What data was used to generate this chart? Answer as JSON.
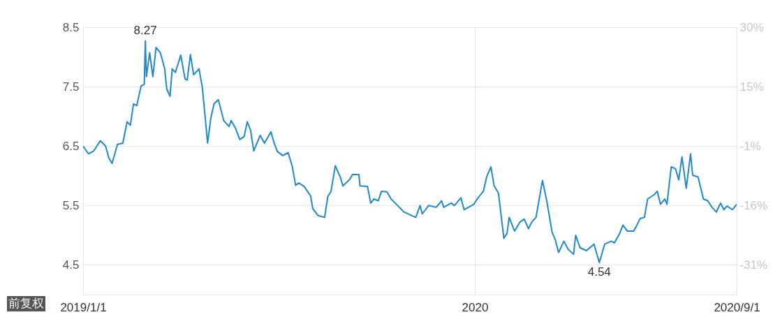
{
  "chart_data": {
    "type": "line",
    "x": [
      "2019-01-01",
      "2019-01-06",
      "2019-01-11",
      "2019-01-17",
      "2019-01-22",
      "2019-01-25",
      "2019-01-28",
      "2019-02-02",
      "2019-02-07",
      "2019-02-11",
      "2019-02-14",
      "2019-02-17",
      "2019-02-20",
      "2019-02-24",
      "2019-02-27",
      "2019-02-28",
      "2019-03-01",
      "2019-03-04",
      "2019-03-07",
      "2019-03-10",
      "2019-03-14",
      "2019-03-18",
      "2019-03-20",
      "2019-03-23",
      "2019-03-25",
      "2019-03-28",
      "2019-04-02",
      "2019-04-06",
      "2019-04-08",
      "2019-04-11",
      "2019-04-14",
      "2019-04-19",
      "2019-04-22",
      "2019-04-24",
      "2019-04-27",
      "2019-04-30",
      "2019-05-03",
      "2019-05-07",
      "2019-05-12",
      "2019-05-17",
      "2019-05-19",
      "2019-05-23",
      "2019-05-27",
      "2019-05-31",
      "2019-06-03",
      "2019-06-06",
      "2019-06-09",
      "2019-06-15",
      "2019-06-19",
      "2019-06-25",
      "2019-06-28",
      "2019-07-01",
      "2019-07-06",
      "2019-07-11",
      "2019-07-15",
      "2019-07-18",
      "2019-07-21",
      "2019-07-26",
      "2019-08-01",
      "2019-08-03",
      "2019-08-08",
      "2019-08-14",
      "2019-08-17",
      "2019-08-20",
      "2019-08-24",
      "2019-08-29",
      "2019-08-31",
      "2019-09-06",
      "2019-09-09",
      "2019-09-15",
      "2019-09-16",
      "2019-09-23",
      "2019-09-26",
      "2019-09-29",
      "2019-10-03",
      "2019-10-06",
      "2019-10-11",
      "2019-10-15",
      "2019-10-21",
      "2019-10-27",
      "2019-11-02",
      "2019-11-07",
      "2019-11-11",
      "2019-11-13",
      "2019-11-19",
      "2019-11-26",
      "2019-12-01",
      "2019-12-03",
      "2019-12-10",
      "2019-12-13",
      "2019-12-19",
      "2019-12-22",
      "2019-12-31",
      "2020-01-04",
      "2020-01-09",
      "2020-01-12",
      "2020-01-16",
      "2020-01-19",
      "2020-01-23",
      "2020-01-27",
      "2020-01-28",
      "2020-01-31",
      "2020-02-02",
      "2020-02-07",
      "2020-02-12",
      "2020-02-16",
      "2020-02-20",
      "2020-02-23",
      "2020-02-27",
      "2020-03-04",
      "2020-03-08",
      "2020-03-13",
      "2020-03-16",
      "2020-03-19",
      "2020-03-24",
      "2020-03-28",
      "2020-04-02",
      "2020-04-04",
      "2020-04-08",
      "2020-04-14",
      "2020-04-21",
      "2020-04-26",
      "2020-05-01",
      "2020-05-07",
      "2020-05-10",
      "2020-05-15",
      "2020-05-18",
      "2020-05-22",
      "2020-05-28",
      "2020-05-31",
      "2020-06-03",
      "2020-06-07",
      "2020-06-10",
      "2020-06-16",
      "2020-06-19",
      "2020-06-22",
      "2020-06-26",
      "2020-06-28",
      "2020-07-02",
      "2020-07-06",
      "2020-07-09",
      "2020-07-12",
      "2020-07-16",
      "2020-07-20",
      "2020-07-22",
      "2020-07-27",
      "2020-08-01",
      "2020-08-05",
      "2020-08-09",
      "2020-08-13",
      "2020-08-17",
      "2020-08-20",
      "2020-08-23",
      "2020-08-28",
      "2020-09-01"
    ],
    "series": [
      {
        "color": "#1f88cf",
        "values": [
          6.5,
          6.37,
          6.42,
          6.59,
          6.5,
          6.3,
          6.21,
          6.53,
          6.55,
          6.91,
          6.85,
          7.21,
          7.18,
          7.51,
          7.54,
          8.27,
          7.67,
          8.07,
          7.67,
          8.16,
          8.07,
          7.8,
          7.46,
          7.34,
          7.8,
          7.74,
          8.03,
          7.63,
          7.61,
          8.04,
          7.7,
          7.8,
          7.5,
          7.13,
          6.55,
          6.97,
          7.21,
          7.28,
          6.93,
          6.83,
          6.93,
          6.8,
          6.61,
          6.66,
          6.91,
          6.77,
          6.42,
          6.68,
          6.55,
          6.74,
          6.55,
          6.41,
          6.34,
          6.39,
          6.15,
          5.84,
          5.88,
          5.82,
          5.66,
          5.45,
          5.33,
          5.3,
          5.65,
          5.74,
          6.17,
          5.96,
          5.83,
          5.93,
          6.02,
          6.02,
          5.83,
          5.82,
          5.54,
          5.61,
          5.58,
          5.74,
          5.73,
          5.61,
          5.5,
          5.39,
          5.34,
          5.3,
          5.5,
          5.36,
          5.5,
          5.47,
          5.58,
          5.47,
          5.54,
          5.5,
          5.63,
          5.43,
          5.52,
          5.63,
          5.74,
          5.98,
          6.15,
          5.83,
          5.71,
          5.11,
          4.95,
          5.03,
          5.3,
          5.07,
          5.22,
          5.27,
          5.11,
          5.22,
          5.3,
          5.92,
          5.58,
          5.05,
          4.92,
          4.71,
          4.9,
          4.76,
          4.68,
          5.0,
          4.79,
          4.74,
          4.85,
          4.54,
          4.85,
          4.9,
          4.87,
          5.03,
          5.17,
          5.07,
          5.07,
          5.17,
          5.28,
          5.3,
          5.61,
          5.68,
          5.74,
          5.52,
          5.61,
          5.52,
          6.15,
          6.12,
          5.93,
          6.32,
          5.79,
          6.37,
          6.01,
          5.98,
          5.61,
          5.58,
          5.47,
          5.39,
          5.54,
          5.43,
          5.49,
          5.43,
          5.52
        ]
      }
    ],
    "xlim": [
      "2019-01-01",
      "2020-09-01"
    ],
    "xticks": [
      {
        "value": "2019-01-01",
        "label": "2019/1/1"
      },
      {
        "value": "2020-01-01",
        "label": "2020"
      },
      {
        "value": "2020-09-01",
        "label": "2020/9/1"
      }
    ],
    "ylim": [
      4.0,
      8.5
    ],
    "yticks": [
      4.5,
      5.5,
      6.5,
      7.5,
      8.5
    ],
    "y2lim": [
      -38.9,
      29.8
    ],
    "y2ticks": [
      {
        "value": -31.3,
        "label": "-31%"
      },
      {
        "value": -16.0,
        "label": "-16%"
      },
      {
        "value": -0.8,
        "label": "-1%"
      },
      {
        "value": 14.5,
        "label": "15%"
      },
      {
        "value": 29.8,
        "label": "30%"
      }
    ],
    "grid": true,
    "annotations": [
      {
        "text": "8.27",
        "x": "2019-02-28",
        "y": 8.27
      },
      {
        "text": "4.54",
        "x": "2020-04-26",
        "y": 4.54
      },
      "前复权"
    ]
  }
}
